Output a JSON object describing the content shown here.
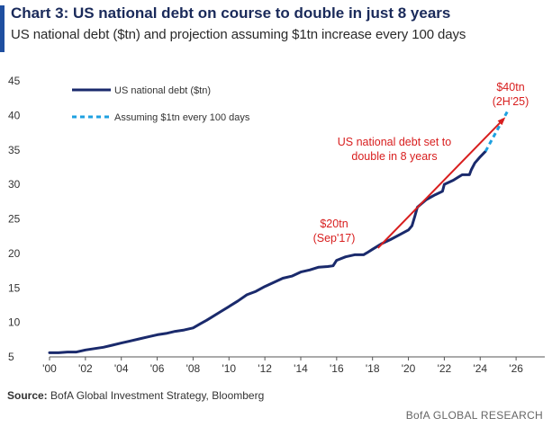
{
  "header": {
    "title": "Chart 3: US national debt on course to double in just 8 years",
    "subtitle": "US national debt ($tn) and projection assuming $1tn increase every 100 days"
  },
  "colors": {
    "accent": "#1f4fa0",
    "debt_line": "#1a2a6c",
    "projection_line": "#1ea0e0",
    "annotation": "#d81e1e"
  },
  "chart_data": {
    "type": "line",
    "xlim": [
      2000,
      2027.6
    ],
    "ylim": [
      5,
      45
    ],
    "y_ticks": [
      5,
      10,
      15,
      20,
      25,
      30,
      35,
      40,
      45
    ],
    "x_ticks": [
      2000,
      2002,
      2004,
      2006,
      2008,
      2010,
      2012,
      2014,
      2016,
      2018,
      2020,
      2022,
      2024,
      2026
    ],
    "x_tick_labels": [
      "'00",
      "'02",
      "'04",
      "'06",
      "'08",
      "'10",
      "'12",
      "'14",
      "'16",
      "'18",
      "'20",
      "'22",
      "'24",
      "'26"
    ],
    "grid": false,
    "legend_position": "top-left",
    "series": [
      {
        "name": "US national debt ($tn)",
        "style": "solid",
        "x": [
          2000.0,
          2000.5,
          2001.0,
          2001.5,
          2002.0,
          2002.5,
          2003.0,
          2003.5,
          2004.0,
          2004.5,
          2005.0,
          2005.5,
          2006.0,
          2006.5,
          2007.0,
          2007.5,
          2008.0,
          2008.4,
          2008.75,
          2009.0,
          2009.5,
          2010.0,
          2010.5,
          2011.0,
          2011.5,
          2012.0,
          2012.5,
          2013.0,
          2013.5,
          2014.0,
          2014.5,
          2015.0,
          2015.5,
          2015.8,
          2016.0,
          2016.5,
          2017.0,
          2017.5,
          2017.7,
          2018.0,
          2018.5,
          2019.0,
          2019.5,
          2020.0,
          2020.2,
          2020.35,
          2020.5,
          2021.0,
          2021.5,
          2021.9,
          2022.0,
          2022.5,
          2023.0,
          2023.4,
          2023.5,
          2023.7,
          2024.0,
          2024.3
        ],
        "values": [
          5.6,
          5.6,
          5.7,
          5.7,
          6.0,
          6.2,
          6.4,
          6.7,
          7.0,
          7.3,
          7.6,
          7.9,
          8.2,
          8.4,
          8.7,
          8.9,
          9.2,
          9.8,
          10.3,
          10.7,
          11.5,
          12.3,
          13.1,
          14.0,
          14.5,
          15.2,
          15.8,
          16.4,
          16.7,
          17.3,
          17.6,
          18.0,
          18.1,
          18.2,
          19.0,
          19.5,
          19.8,
          19.8,
          20.1,
          20.6,
          21.4,
          22.0,
          22.7,
          23.4,
          24.0,
          25.3,
          26.7,
          27.8,
          28.5,
          29.0,
          30.0,
          30.6,
          31.4,
          31.4,
          32.1,
          33.1,
          34.0,
          34.8
        ]
      },
      {
        "name": "Assuming $1tn every 100 days",
        "style": "dashed",
        "x": [
          2024.3,
          2025.5
        ],
        "values": [
          34.8,
          40.5
        ]
      }
    ],
    "annotations": [
      {
        "lines": [
          "$20tn",
          "(Sep'17)"
        ],
        "x": 2017.7,
        "y": 20
      },
      {
        "lines": [
          "$40tn",
          "(2H'25)"
        ],
        "x": 2025.5,
        "y": 40
      },
      {
        "lines": [
          "US national debt set to",
          "double in 8 years"
        ]
      }
    ],
    "arrow": {
      "from": [
        2017.7,
        20
      ],
      "to": [
        2025.5,
        40.5
      ]
    }
  },
  "footer": {
    "source_label": "Source:",
    "source_text": " BofA Global Investment Strategy, Bloomberg",
    "brand": "BofA GLOBAL RESEARCH"
  }
}
